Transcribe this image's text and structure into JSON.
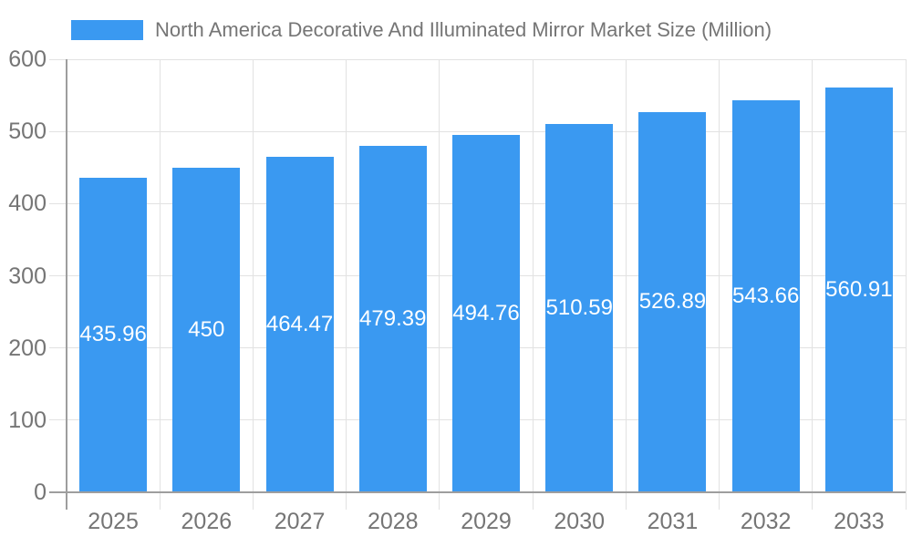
{
  "colors": {
    "bar": "#3A99F1",
    "grid": "#E2E2E2",
    "axis": "#9E9E9E",
    "text": "#757575",
    "value_label": "#FFFFFF",
    "background": "#FFFFFF"
  },
  "chart_data": {
    "type": "bar",
    "title": "North America Decorative And Illuminated Mirror Market Size (Million)",
    "xlabel": "",
    "ylabel": "",
    "categories": [
      "2025",
      "2026",
      "2027",
      "2028",
      "2029",
      "2030",
      "2031",
      "2032",
      "2033"
    ],
    "values": [
      435.96,
      450,
      464.47,
      479.39,
      494.76,
      510.59,
      526.89,
      543.66,
      560.91
    ],
    "value_labels": [
      "435.96",
      "450",
      "464.47",
      "479.39",
      "494.76",
      "510.59",
      "526.89",
      "543.66",
      "560.91"
    ],
    "ylim": [
      0,
      600
    ],
    "yticks": [
      0,
      100,
      200,
      300,
      400,
      500,
      600
    ],
    "grid": true,
    "legend_position": "top-left"
  }
}
